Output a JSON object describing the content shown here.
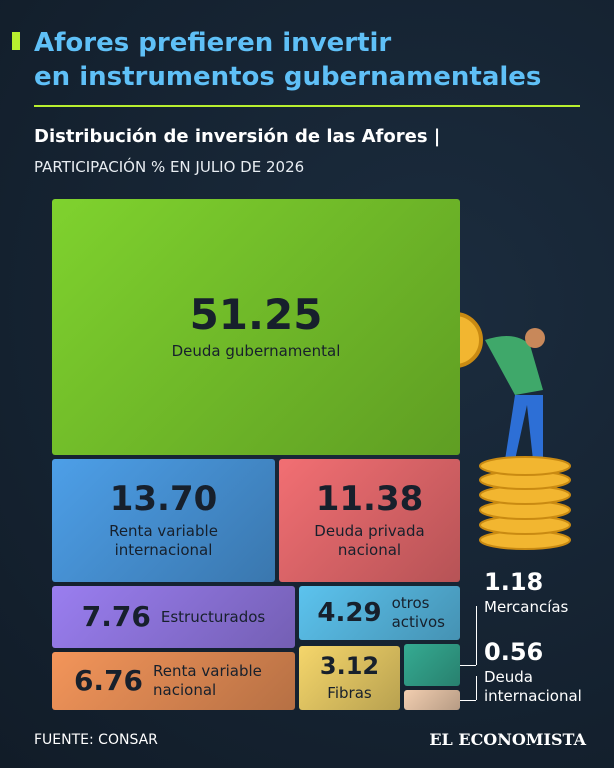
{
  "title_lines": [
    "Afores prefieren invertir",
    "en instrumentos gubernamentales"
  ],
  "chart_data": {
    "type": "treemap",
    "title": "Distribución de inversión de las Afores |",
    "subtitle": "PARTICIPACIÓN % EN JULIO DE 2026",
    "categories": [
      "Deuda gubernamental",
      "Renta variable internacional",
      "Deuda privada nacional",
      "Estructurados",
      "otros activos",
      "Renta variable nacional",
      "Fibras",
      "Mercancías",
      "Deuda internacional"
    ],
    "values": [
      51.25,
      13.7,
      11.38,
      7.76,
      4.29,
      6.76,
      3.12,
      1.18,
      0.56
    ],
    "value_labels": [
      "51.25",
      "13.70",
      "11.38",
      "7.76",
      "4.29",
      "6.76",
      "3.12",
      "1.18",
      "0.56"
    ],
    "colors": [
      "#7fd22e",
      "#4d9fe8",
      "#f26f73",
      "#9a7ef0",
      "#5cc3ee",
      "#f3955a",
      "#f5d66b",
      "#35ab92",
      "#f2ceb0"
    ]
  },
  "source": "FUENTE: CONSAR",
  "brand": "EL ECONOMISTA"
}
